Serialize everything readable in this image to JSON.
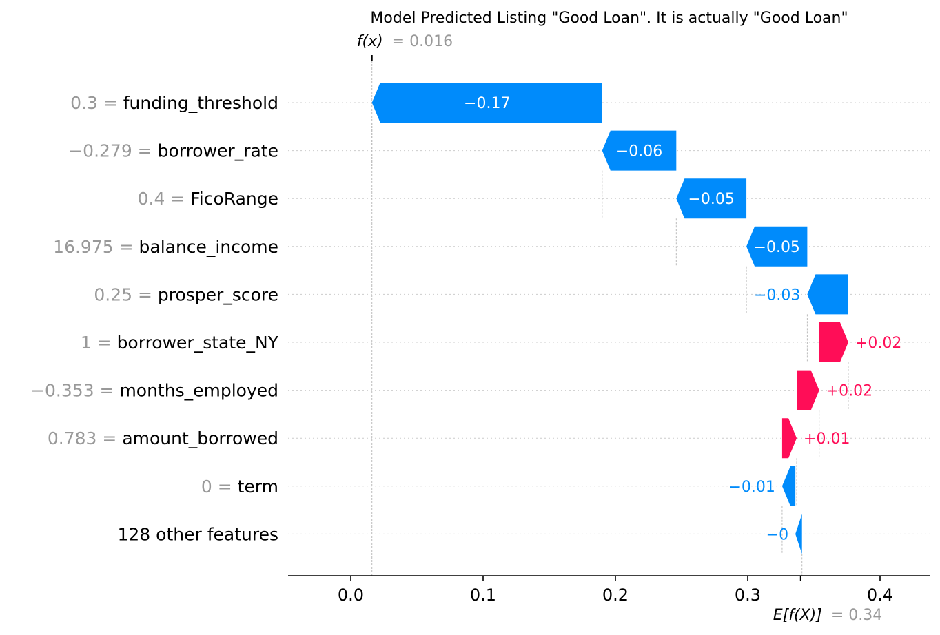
{
  "chart_data": {
    "type": "waterfall",
    "title": "Model Predicted Listing \"Good Loan\". It is actually \"Good Loan\"",
    "fx": {
      "label": "f(x)",
      "eq": "= 0.016",
      "value": 0.016
    },
    "efx": {
      "label": "E[f(X)]",
      "eq": "= 0.34",
      "value": 0.34
    },
    "xlim": [
      -0.047,
      0.436
    ],
    "xticks": [
      {
        "value": 0.0,
        "label": "0.0"
      },
      {
        "value": 0.1,
        "label": "0.1"
      },
      {
        "value": 0.2,
        "label": "0.2"
      },
      {
        "value": 0.3,
        "label": "0.3"
      },
      {
        "value": 0.4,
        "label": "0.4"
      }
    ],
    "features": [
      {
        "value_text": "0.3",
        "name": "funding_threshold",
        "start": 0.19,
        "end": 0.016,
        "label": "−0.17",
        "label_inside": true
      },
      {
        "value_text": "−0.279",
        "name": "borrower_rate",
        "start": 0.246,
        "end": 0.19,
        "label": "−0.06",
        "label_inside": true
      },
      {
        "value_text": "0.4",
        "name": "FicoRange",
        "start": 0.299,
        "end": 0.246,
        "label": "−0.05",
        "label_inside": true
      },
      {
        "value_text": "16.975",
        "name": "balance_income",
        "start": 0.345,
        "end": 0.299,
        "label": "−0.05",
        "label_inside": true
      },
      {
        "value_text": "0.25",
        "name": "prosper_score",
        "start": 0.376,
        "end": 0.345,
        "label": "−0.03",
        "label_inside": false
      },
      {
        "value_text": "1",
        "name": "borrower_state_NY",
        "start": 0.354,
        "end": 0.376,
        "label": "+0.02",
        "label_inside": false
      },
      {
        "value_text": "−0.353",
        "name": "months_employed",
        "start": 0.337,
        "end": 0.354,
        "label": "+0.02",
        "label_inside": false
      },
      {
        "value_text": "0.783",
        "name": "amount_borrowed",
        "start": 0.326,
        "end": 0.337,
        "label": "+0.01",
        "label_inside": false
      },
      {
        "value_text": "0",
        "name": "term",
        "start": 0.336,
        "end": 0.326,
        "label": "−0.01",
        "label_inside": false
      },
      {
        "value_text": "",
        "name": "128 other features",
        "start": 0.341,
        "end": 0.336,
        "label": "−0",
        "label_inside": false
      }
    ],
    "colors": {
      "positive": "#ff0d57",
      "negative": "#008bfb",
      "value_text": "#999999",
      "name_text": "#000000",
      "grid": "#cccccc"
    }
  }
}
